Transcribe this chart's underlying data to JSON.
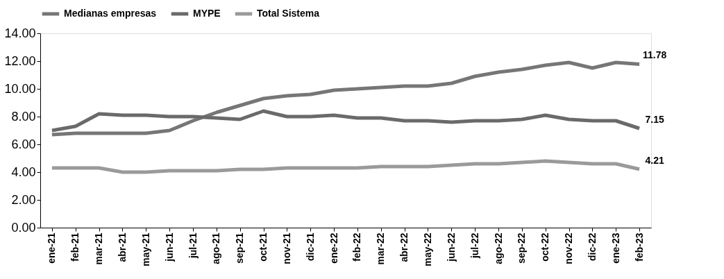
{
  "chart_data": {
    "type": "line",
    "categories": [
      "ene-21",
      "feb-21",
      "mar-21",
      "abr-21",
      "may-21",
      "jun-21",
      "jul-21",
      "ago-21",
      "sep-21",
      "oct-21",
      "nov-21",
      "dic-21",
      "ene-22",
      "feb-22",
      "mar-22",
      "abr-22",
      "may-22",
      "jun-22",
      "jul-22",
      "ago-22",
      "sep-22",
      "oct-22",
      "nov-22",
      "dic-22",
      "ene-23",
      "feb-23"
    ],
    "series": [
      {
        "name": "Medianas empresas",
        "color": "#767676",
        "values": [
          6.7,
          6.8,
          6.8,
          6.8,
          6.8,
          7.0,
          7.7,
          8.3,
          8.8,
          9.3,
          9.5,
          9.6,
          9.9,
          10.0,
          10.1,
          10.2,
          10.2,
          10.4,
          10.9,
          11.2,
          11.4,
          11.7,
          11.9,
          11.5,
          11.9,
          11.78
        ],
        "value_labels": [
          null,
          null,
          null,
          null,
          null,
          null,
          null,
          null,
          null,
          null,
          null,
          null,
          null,
          null,
          null,
          null,
          null,
          null,
          null,
          null,
          null,
          null,
          null,
          null,
          null,
          "11.78"
        ]
      },
      {
        "name": "MYPE",
        "color": "#6a6a6a",
        "values": [
          7.0,
          7.3,
          8.2,
          8.1,
          8.1,
          8.0,
          8.0,
          7.9,
          7.8,
          8.4,
          8.0,
          8.0,
          8.1,
          7.9,
          7.9,
          7.7,
          7.7,
          7.6,
          7.7,
          7.7,
          7.8,
          8.1,
          7.8,
          7.7,
          7.7,
          7.15
        ],
        "value_labels": [
          null,
          null,
          null,
          null,
          null,
          null,
          null,
          null,
          null,
          null,
          null,
          null,
          null,
          null,
          null,
          null,
          null,
          null,
          null,
          null,
          null,
          null,
          null,
          null,
          null,
          "7.15"
        ]
      },
      {
        "name": "Total Sistema",
        "color": "#9a9a9a",
        "values": [
          4.3,
          4.3,
          4.3,
          4.0,
          4.0,
          4.1,
          4.1,
          4.1,
          4.2,
          4.2,
          4.3,
          4.3,
          4.3,
          4.3,
          4.4,
          4.4,
          4.4,
          4.5,
          4.6,
          4.6,
          4.7,
          4.8,
          4.7,
          4.6,
          4.6,
          4.21
        ],
        "value_labels": [
          null,
          null,
          null,
          null,
          null,
          null,
          null,
          null,
          null,
          null,
          null,
          null,
          null,
          null,
          null,
          null,
          null,
          null,
          null,
          null,
          null,
          null,
          null,
          null,
          null,
          "4.21"
        ]
      }
    ],
    "ylim": [
      0,
      14
    ],
    "yticks": [
      {
        "value": 0,
        "label": "0.00"
      },
      {
        "value": 2,
        "label": "2.00"
      },
      {
        "value": 4,
        "label": "4.00"
      },
      {
        "value": 6,
        "label": "6.00"
      },
      {
        "value": 8,
        "label": "8.00"
      },
      {
        "value": 10,
        "label": "10.00"
      },
      {
        "value": 12,
        "label": "12.00"
      },
      {
        "value": 14,
        "label": "14.00"
      }
    ],
    "grid": false,
    "legend": "top",
    "marker": "none",
    "line_style": "solid"
  }
}
